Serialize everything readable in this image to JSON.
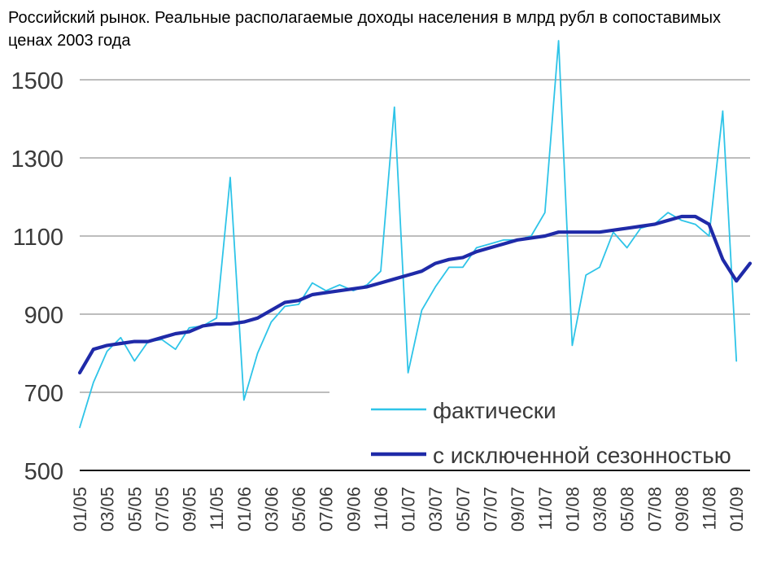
{
  "page": {
    "title": "Российский рынок.  Реальные располагаемые доходы населения в млрд рубл в сопоставимых ценах 2003 года"
  },
  "chart_data": {
    "type": "line",
    "title": "Российский рынок.  Реальные располагаемые доходы населения в млрд рубл в сопоставимых ценах 2003 года",
    "xlabel": "",
    "ylabel": "",
    "ylim": [
      500,
      1600
    ],
    "yticks": [
      500,
      700,
      900,
      1100,
      1300,
      1500
    ],
    "grid": true,
    "legend_position": "bottom-right",
    "x": [
      "01/05",
      "02/05",
      "03/05",
      "04/05",
      "05/05",
      "06/05",
      "07/05",
      "08/05",
      "09/05",
      "10/05",
      "11/05",
      "12/05",
      "01/06",
      "02/06",
      "03/06",
      "04/06",
      "05/06",
      "06/06",
      "07/06",
      "08/06",
      "09/06",
      "10/06",
      "11/06",
      "12/06",
      "01/07",
      "02/07",
      "03/07",
      "04/07",
      "05/07",
      "06/07",
      "07/07",
      "08/07",
      "09/07",
      "10/07",
      "11/07",
      "12/07",
      "01/08",
      "02/08",
      "03/08",
      "04/08",
      "05/08",
      "06/08",
      "07/08",
      "08/08",
      "09/08",
      "10/08",
      "11/08",
      "12/08",
      "01/09",
      "02/09"
    ],
    "x_tick_labels": [
      "01/05",
      "03/05",
      "05/05",
      "07/05",
      "09/05",
      "11/05",
      "01/06",
      "03/06",
      "05/06",
      "07/06",
      "09/06",
      "11/06",
      "01/07",
      "03/07",
      "05/07",
      "07/07",
      "09/07",
      "11/07",
      "01/08",
      "03/08",
      "05/08",
      "07/08",
      "09/08",
      "11/08",
      "01/09"
    ],
    "series": [
      {
        "name": "фактически",
        "color": "#2ec4e8",
        "values": [
          610,
          725,
          805,
          840,
          780,
          830,
          835,
          810,
          865,
          870,
          890,
          1250,
          680,
          800,
          880,
          920,
          925,
          980,
          960,
          975,
          960,
          975,
          1010,
          1430,
          750,
          910,
          970,
          1020,
          1020,
          1070,
          1080,
          1090,
          1090,
          1100,
          1160,
          1600,
          820,
          1000,
          1020,
          1110,
          1070,
          1120,
          1130,
          1160,
          1140,
          1130,
          1100,
          1420,
          780,
          null
        ]
      },
      {
        "name": "с исключенной сезонностью",
        "color": "#1f2aa8",
        "values": [
          750,
          810,
          820,
          825,
          830,
          830,
          840,
          850,
          855,
          870,
          875,
          875,
          880,
          890,
          910,
          930,
          935,
          950,
          955,
          960,
          965,
          970,
          980,
          990,
          1000,
          1010,
          1030,
          1040,
          1045,
          1060,
          1070,
          1080,
          1090,
          1095,
          1100,
          1110,
          1110,
          1110,
          1110,
          1115,
          1120,
          1125,
          1130,
          1140,
          1150,
          1150,
          1130,
          1040,
          985,
          1030
        ]
      }
    ]
  }
}
